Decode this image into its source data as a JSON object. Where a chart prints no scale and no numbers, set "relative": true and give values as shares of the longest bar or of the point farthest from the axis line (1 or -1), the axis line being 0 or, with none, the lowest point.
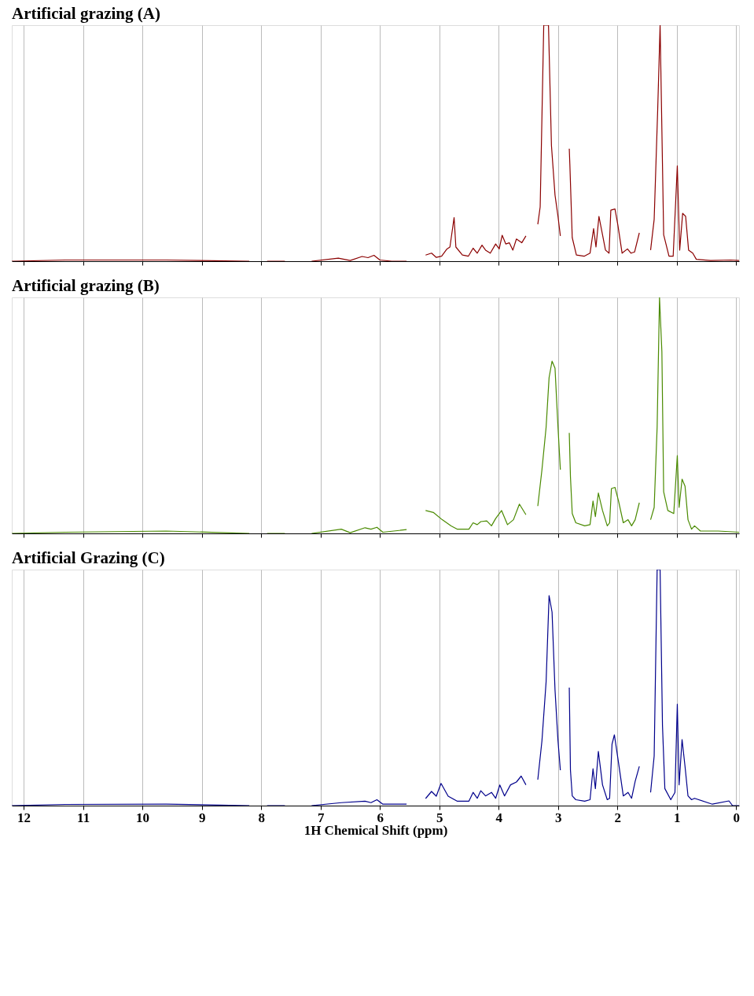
{
  "chart_data": [
    {
      "type": "line",
      "title": "Artificial grazing (A)",
      "relative": true,
      "color": "#8b0000",
      "xlim": [
        12.2,
        -0.05
      ],
      "xticks": [
        12,
        11,
        10,
        9,
        8,
        7,
        6,
        5,
        4,
        3,
        2,
        1,
        0
      ],
      "grid": "x",
      "tick_labels": false,
      "x": [
        12.2,
        11.3,
        9.6,
        8.2,
        8.0,
        7.9,
        7.6,
        7.4,
        7.15,
        6.7,
        6.5,
        6.3,
        6.2,
        6.1,
        6.0,
        5.8,
        5.55,
        5.4,
        5.23,
        5.13,
        5.05,
        4.96,
        4.87,
        4.82,
        4.75,
        4.72,
        4.61,
        4.51,
        4.43,
        4.36,
        4.28,
        4.22,
        4.14,
        4.05,
        3.99,
        3.94,
        3.88,
        3.82,
        3.76,
        3.7,
        3.61,
        3.54,
        3.45,
        3.34,
        3.3,
        3.24,
        3.16,
        3.11,
        3.05,
        3.0,
        2.96,
        2.88,
        2.81,
        2.8,
        2.76,
        2.69,
        2.56,
        2.46,
        2.4,
        2.36,
        2.31,
        2.25,
        2.2,
        2.14,
        2.11,
        2.04,
        1.99,
        1.92,
        1.83,
        1.77,
        1.71,
        1.63,
        1.55,
        1.44,
        1.38,
        1.32,
        1.28,
        1.24,
        1.22,
        1.13,
        1.06,
        0.99,
        0.95,
        0.9,
        0.85,
        0.8,
        0.73,
        0.67,
        0.43,
        0.09,
        -0.05
      ],
      "values": [
        0,
        0.005,
        0.005,
        0,
        null,
        0,
        0,
        null,
        0,
        0.013,
        0.003,
        0.02,
        0.015,
        0.025,
        0.005,
        0,
        0,
        null,
        0.026,
        0.034,
        0.016,
        0.021,
        0.052,
        0.06,
        0.185,
        0.06,
        0.026,
        0.021,
        0.055,
        0.034,
        0.068,
        0.047,
        0.034,
        0.073,
        0.052,
        0.11,
        0.073,
        0.078,
        0.047,
        0.094,
        0.078,
        0.107,
        null,
        0.156,
        0.23,
        1,
        1,
        0.49,
        0.28,
        0.19,
        0.107,
        null,
        0.477,
        0.41,
        0.1,
        0.026,
        0.021,
        0.034,
        0.138,
        0.06,
        0.19,
        0.112,
        0.047,
        0.034,
        0.216,
        0.221,
        0.151,
        0.034,
        0.052,
        0.034,
        0.039,
        0.12,
        null,
        0.047,
        0.177,
        0.646,
        1,
        0.41,
        0.112,
        0.021,
        0.021,
        0.404,
        0.047,
        0.203,
        0.19,
        0.047,
        0.034,
        0.008,
        0.003,
        0.005,
        0.003
      ]
    },
    {
      "type": "line",
      "title": "Artificial grazing (B)",
      "relative": true,
      "color": "#4a8a00",
      "xlim": [
        12.2,
        -0.05
      ],
      "xticks": [
        12,
        11,
        10,
        9,
        8,
        7,
        6,
        5,
        4,
        3,
        2,
        1,
        0
      ],
      "grid": "x",
      "tick_labels": false,
      "x": [
        12.2,
        11.3,
        9.6,
        8.2,
        8.0,
        7.9,
        7.6,
        7.4,
        7.15,
        6.65,
        6.5,
        6.25,
        6.15,
        6.05,
        5.95,
        5.55,
        5.4,
        5.23,
        5.1,
        4.95,
        4.8,
        4.7,
        4.5,
        4.43,
        4.36,
        4.3,
        4.2,
        4.12,
        4.05,
        3.95,
        3.85,
        3.75,
        3.65,
        3.54,
        3.45,
        3.34,
        3.27,
        3.2,
        3.15,
        3.1,
        3.05,
        3.0,
        2.96,
        2.88,
        2.81,
        2.79,
        2.76,
        2.7,
        2.55,
        2.46,
        2.41,
        2.37,
        2.32,
        2.25,
        2.17,
        2.13,
        2.1,
        2.04,
        1.98,
        1.9,
        1.82,
        1.76,
        1.7,
        1.63,
        1.55,
        1.44,
        1.38,
        1.33,
        1.29,
        1.25,
        1.22,
        1.15,
        1.05,
        0.99,
        0.96,
        0.91,
        0.86,
        0.81,
        0.75,
        0.7,
        0.6,
        0.3,
        -0.05
      ],
      "values": [
        0,
        0.005,
        0.01,
        0,
        null,
        0,
        0,
        null,
        0,
        0.018,
        0.003,
        0.024,
        0.018,
        0.026,
        0.005,
        0.016,
        null,
        0.097,
        0.089,
        0.058,
        0.032,
        0.018,
        0.018,
        0.045,
        0.037,
        0.05,
        0.053,
        0.032,
        0.063,
        0.097,
        0.037,
        0.058,
        0.124,
        0.079,
        null,
        0.116,
        0.27,
        0.45,
        0.66,
        0.73,
        0.7,
        0.45,
        0.27,
        null,
        0.426,
        0.24,
        0.084,
        0.045,
        0.032,
        0.037,
        0.137,
        0.071,
        0.171,
        0.097,
        0.032,
        0.045,
        0.19,
        0.195,
        0.137,
        0.045,
        0.058,
        0.032,
        0.058,
        0.13,
        null,
        0.058,
        0.11,
        0.45,
        1,
        0.77,
        0.176,
        0.097,
        0.084,
        0.33,
        0.11,
        0.23,
        0.2,
        0.058,
        0.018,
        0.032,
        0.01,
        0.01,
        0.005
      ]
    },
    {
      "type": "line",
      "title": "Artificial Grazing (C)",
      "relative": true,
      "color": "#00008b",
      "xlim": [
        12.2,
        -0.05
      ],
      "xticks": [
        12,
        11,
        10,
        9,
        8,
        7,
        6,
        5,
        4,
        3,
        2,
        1,
        0
      ],
      "grid": "x",
      "tick_labels": "x",
      "xlabel": "1H Chemical Shift (ppm)",
      "x": [
        12.2,
        11.3,
        9.6,
        8.2,
        8.0,
        7.9,
        7.6,
        7.4,
        7.15,
        6.65,
        6.25,
        6.15,
        6.05,
        5.95,
        5.55,
        5.4,
        5.23,
        5.13,
        5.05,
        4.97,
        4.85,
        4.7,
        4.5,
        4.43,
        4.36,
        4.3,
        4.22,
        4.12,
        4.05,
        3.98,
        3.9,
        3.8,
        3.7,
        3.62,
        3.54,
        3.45,
        3.34,
        3.27,
        3.2,
        3.15,
        3.1,
        3.05,
        3.0,
        2.96,
        2.88,
        2.81,
        2.79,
        2.76,
        2.7,
        2.55,
        2.46,
        2.41,
        2.37,
        2.32,
        2.25,
        2.17,
        2.13,
        2.09,
        2.05,
        1.98,
        1.9,
        1.82,
        1.76,
        1.7,
        1.63,
        1.55,
        1.44,
        1.38,
        1.33,
        1.28,
        1.24,
        1.2,
        1.1,
        1.03,
        0.99,
        0.96,
        0.91,
        0.86,
        0.81,
        0.75,
        0.7,
        0.4,
        0.12,
        0.06,
        -0.05
      ],
      "values": [
        0,
        0.005,
        0.006,
        0,
        null,
        0,
        0,
        null,
        0,
        0.0125,
        0.019,
        0.0125,
        0.025,
        0.006,
        0.006,
        null,
        0.03,
        0.06,
        0.04,
        0.094,
        0.04,
        0.019,
        0.019,
        0.056,
        0.031,
        0.063,
        0.041,
        0.056,
        0.031,
        0.0875,
        0.041,
        0.088,
        0.1,
        0.125,
        0.088,
        null,
        0.11,
        0.275,
        0.525,
        0.89,
        0.82,
        0.49,
        0.275,
        0.15,
        null,
        0.5,
        0.15,
        0.041,
        0.025,
        0.019,
        0.025,
        0.156,
        0.072,
        0.23,
        0.088,
        0.025,
        0.031,
        0.26,
        0.3,
        0.181,
        0.041,
        0.056,
        0.031,
        0.103,
        0.166,
        null,
        0.056,
        0.21,
        1,
        1,
        0.34,
        0.072,
        0.025,
        0.056,
        0.43,
        0.088,
        0.28,
        0.166,
        0.041,
        0.025,
        0.031,
        0.006,
        0.02,
        0,
        0
      ]
    }
  ]
}
